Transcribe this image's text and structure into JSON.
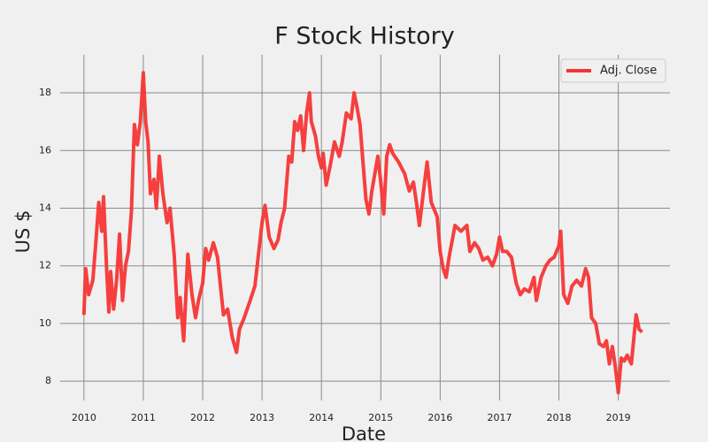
{
  "chart_data": {
    "type": "line",
    "title": "F Stock History",
    "xlabel": "Date",
    "ylabel": "US $",
    "x": [
      2010.0,
      2010.03,
      2010.08,
      2010.15,
      2010.2,
      2010.25,
      2010.3,
      2010.33,
      2010.38,
      2010.42,
      2010.45,
      2010.5,
      2010.55,
      2010.6,
      2010.65,
      2010.7,
      2010.75,
      2010.8,
      2010.85,
      2010.9,
      2010.95,
      2011.0,
      2011.04,
      2011.08,
      2011.12,
      2011.18,
      2011.22,
      2011.27,
      2011.33,
      2011.4,
      2011.45,
      2011.52,
      2011.58,
      2011.62,
      2011.68,
      2011.75,
      2011.82,
      2011.88,
      2011.93,
      2012.0,
      2012.05,
      2012.1,
      2012.18,
      2012.25,
      2012.3,
      2012.35,
      2012.42,
      2012.5,
      2012.57,
      2012.62,
      2012.7,
      2012.8,
      2012.88,
      2013.0,
      2013.05,
      2013.12,
      2013.2,
      2013.27,
      2013.32,
      2013.38,
      2013.45,
      2013.5,
      2013.55,
      2013.6,
      2013.65,
      2013.7,
      2013.75,
      2013.8,
      2013.83,
      2013.9,
      2013.95,
      2014.0,
      2014.03,
      2014.08,
      2014.15,
      2014.22,
      2014.3,
      2014.35,
      2014.42,
      2014.5,
      2014.55,
      2014.6,
      2014.65,
      2014.7,
      2014.75,
      2014.8,
      2014.85,
      2014.9,
      2014.95,
      2015.0,
      2015.05,
      2015.1,
      2015.15,
      2015.2,
      2015.3,
      2015.4,
      2015.48,
      2015.55,
      2015.6,
      2015.65,
      2015.72,
      2015.78,
      2015.85,
      2015.95,
      2016.0,
      2016.05,
      2016.1,
      2016.15,
      2016.25,
      2016.35,
      2016.45,
      2016.5,
      2016.58,
      2016.65,
      2016.72,
      2016.8,
      2016.88,
      2016.95,
      2017.0,
      2017.05,
      2017.12,
      2017.2,
      2017.28,
      2017.35,
      2017.42,
      2017.5,
      2017.58,
      2017.62,
      2017.7,
      2017.78,
      2017.85,
      2017.92,
      2018.0,
      2018.03,
      2018.08,
      2018.15,
      2018.22,
      2018.3,
      2018.38,
      2018.45,
      2018.5,
      2018.55,
      2018.62,
      2018.68,
      2018.75,
      2018.8,
      2018.85,
      2018.9,
      2018.95,
      2019.0,
      2019.05,
      2019.1,
      2019.15,
      2019.22,
      2019.3,
      2019.35,
      2019.4
    ],
    "series": [
      {
        "name": "Adj. Close",
        "color": "#f53535",
        "values": [
          10.3,
          11.9,
          11.0,
          11.5,
          12.8,
          14.2,
          13.2,
          14.4,
          12.0,
          10.4,
          11.8,
          10.5,
          11.5,
          13.1,
          10.8,
          12.0,
          12.5,
          13.9,
          16.9,
          16.2,
          17.0,
          18.7,
          17.0,
          16.3,
          14.5,
          15.0,
          14.0,
          15.8,
          14.5,
          13.5,
          14.0,
          12.4,
          10.2,
          10.9,
          9.4,
          12.4,
          11.0,
          10.2,
          10.8,
          11.4,
          12.6,
          12.2,
          12.8,
          12.3,
          11.3,
          10.3,
          10.5,
          9.5,
          9.0,
          9.8,
          10.2,
          10.8,
          11.3,
          13.5,
          14.1,
          13.0,
          12.6,
          12.9,
          13.5,
          14.0,
          15.8,
          15.6,
          17.0,
          16.7,
          17.2,
          16.0,
          17.3,
          18.0,
          17.0,
          16.5,
          15.8,
          15.4,
          15.9,
          14.8,
          15.5,
          16.3,
          15.8,
          16.3,
          17.3,
          17.1,
          18.0,
          17.5,
          16.9,
          15.6,
          14.3,
          13.8,
          14.6,
          15.2,
          15.8,
          14.9,
          13.8,
          15.8,
          16.2,
          15.9,
          15.6,
          15.2,
          14.6,
          14.9,
          14.2,
          13.4,
          14.6,
          15.6,
          14.2,
          13.7,
          12.5,
          11.9,
          11.6,
          12.3,
          13.4,
          13.2,
          13.4,
          12.5,
          12.8,
          12.6,
          12.2,
          12.3,
          12.0,
          12.4,
          13.0,
          12.5,
          12.5,
          12.3,
          11.4,
          11.0,
          11.2,
          11.1,
          11.6,
          10.8,
          11.6,
          12.0,
          12.2,
          12.3,
          12.7,
          13.2,
          11.0,
          10.7,
          11.3,
          11.5,
          11.3,
          11.9,
          11.6,
          10.2,
          10.0,
          9.3,
          9.2,
          9.4,
          8.6,
          9.2,
          8.5,
          7.6,
          8.8,
          8.7,
          8.9,
          8.6,
          10.3,
          9.8,
          9.7
        ]
      }
    ],
    "xlim": [
      2009.6,
      2019.87
    ],
    "ylim": [
      7.33,
      19.32
    ],
    "xticks": [
      2010,
      2011,
      2012,
      2013,
      2014,
      2015,
      2016,
      2017,
      2018,
      2019
    ],
    "yticks": [
      8,
      10,
      12,
      14,
      16,
      18
    ],
    "grid": true,
    "legend": "upper right"
  }
}
